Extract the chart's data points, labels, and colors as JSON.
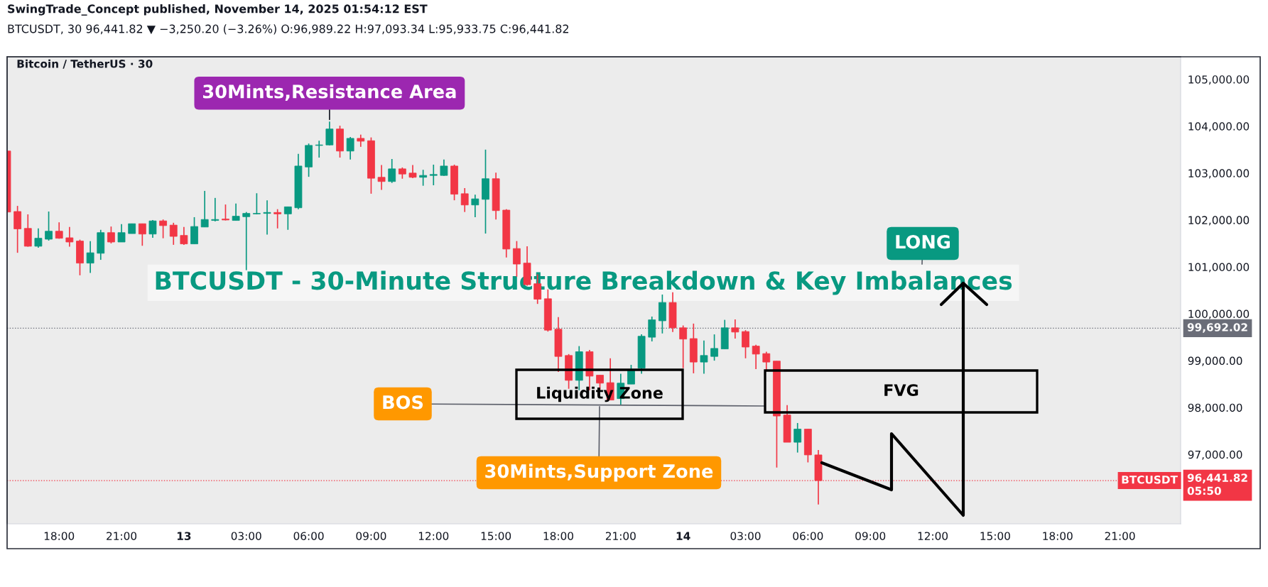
{
  "chart_data": {
    "type": "candlestick",
    "title": "BTCUSDT - 30-Minute Structure Breakdown & Key Imbalances",
    "subtitle": "Bitcoin / TetherUS · 30",
    "annotations": [
      "SwingTrade_Concept published, November 14, 2025 01:54:12 EST",
      "BTCUSDT, 30 96,441.82 ▼ −3,250.20 (−3.26%) O:96,989.22 H:97,093.34 L:95,933.75 C:96,441.82",
      {
        "text": "30Mints,Resistance Area",
        "x": "2025-11-13T07:00",
        "y": 104100
      },
      "LONG",
      "BOS",
      "30Mints,Support Zone",
      "Liquidity Zone",
      "FVG"
    ],
    "x": [
      "2025-11-12T15:30",
      "2025-11-12T16:00",
      "2025-11-12T16:30",
      "2025-11-12T17:00",
      "2025-11-12T17:30",
      "2025-11-12T18:00",
      "2025-11-12T18:30",
      "2025-11-12T19:00",
      "2025-11-12T19:30",
      "2025-11-12T20:00",
      "2025-11-12T20:30",
      "2025-11-12T21:00",
      "2025-11-12T21:30",
      "2025-11-12T22:00",
      "2025-11-12T22:30",
      "2025-11-12T23:00",
      "2025-11-12T23:30",
      "2025-11-13T00:00",
      "2025-11-13T00:30",
      "2025-11-13T01:00",
      "2025-11-13T01:30",
      "2025-11-13T02:00",
      "2025-11-13T02:30",
      "2025-11-13T03:00",
      "2025-11-13T03:30",
      "2025-11-13T04:00",
      "2025-11-13T04:30",
      "2025-11-13T05:00",
      "2025-11-13T05:30",
      "2025-11-13T06:00",
      "2025-11-13T06:30",
      "2025-11-13T07:00",
      "2025-11-13T07:30",
      "2025-11-13T08:00",
      "2025-11-13T08:30",
      "2025-11-13T09:00",
      "2025-11-13T09:30",
      "2025-11-13T10:00",
      "2025-11-13T10:30",
      "2025-11-13T11:00",
      "2025-11-13T11:30",
      "2025-11-13T12:00",
      "2025-11-13T12:30",
      "2025-11-13T13:00",
      "2025-11-13T13:30",
      "2025-11-13T14:00",
      "2025-11-13T14:30",
      "2025-11-13T15:00",
      "2025-11-13T15:30",
      "2025-11-13T16:00",
      "2025-11-13T16:30",
      "2025-11-13T17:00",
      "2025-11-13T17:30",
      "2025-11-13T18:00",
      "2025-11-13T18:30",
      "2025-11-13T19:00",
      "2025-11-13T19:30",
      "2025-11-13T20:00",
      "2025-11-13T20:30",
      "2025-11-13T21:00",
      "2025-11-13T21:30",
      "2025-11-13T22:00",
      "2025-11-13T22:30",
      "2025-11-13T23:00",
      "2025-11-13T23:30",
      "2025-11-14T00:00",
      "2025-11-14T00:30",
      "2025-11-14T01:00",
      "2025-11-14T01:30",
      "2025-11-14T02:00",
      "2025-11-14T02:30",
      "2025-11-14T03:00",
      "2025-11-14T03:30",
      "2025-11-14T04:00",
      "2025-11-14T04:30",
      "2025-11-14T05:00",
      "2025-11-14T05:30",
      "2025-11-14T06:00",
      "2025-11-14T06:30"
    ],
    "ohlc": [
      [
        103470,
        103470,
        102170,
        102170
      ],
      [
        102180,
        102300,
        101300,
        101810
      ],
      [
        101820,
        102120,
        101430,
        101440
      ],
      [
        101440,
        101820,
        101410,
        101610
      ],
      [
        101590,
        102180,
        101560,
        101760
      ],
      [
        101760,
        101950,
        101600,
        101610
      ],
      [
        101620,
        101850,
        101430,
        101530
      ],
      [
        101550,
        101580,
        100820,
        101080
      ],
      [
        101080,
        101550,
        100870,
        101300
      ],
      [
        101290,
        101790,
        101150,
        101730
      ],
      [
        101730,
        101860,
        101500,
        101530
      ],
      [
        101530,
        101910,
        101530,
        101730
      ],
      [
        101710,
        101920,
        101710,
        101920
      ],
      [
        101920,
        101920,
        101450,
        101700
      ],
      [
        101700,
        102000,
        101620,
        101980
      ],
      [
        101980,
        102010,
        101610,
        101880
      ],
      [
        101890,
        101940,
        101470,
        101650
      ],
      [
        101670,
        101850,
        101470,
        101490
      ],
      [
        101490,
        102060,
        101490,
        101860
      ],
      [
        101850,
        102620,
        101850,
        102010
      ],
      [
        101990,
        102470,
        101970,
        102010
      ],
      [
        102020,
        102330,
        101990,
        102000
      ],
      [
        101990,
        102350,
        101990,
        102080
      ],
      [
        102070,
        102170,
        100930,
        102140
      ],
      [
        102130,
        102570,
        102120,
        102140
      ],
      [
        102140,
        102420,
        101690,
        102160
      ],
      [
        102160,
        102230,
        101820,
        102130
      ],
      [
        102130,
        102280,
        101790,
        102280
      ],
      [
        102260,
        103410,
        102230,
        103150
      ],
      [
        103130,
        103630,
        102920,
        103590
      ],
      [
        103590,
        103690,
        103330,
        103600
      ],
      [
        103600,
        104100,
        103590,
        103940
      ],
      [
        103940,
        104010,
        103330,
        103470
      ],
      [
        103470,
        103770,
        103290,
        103740
      ],
      [
        103740,
        103820,
        103560,
        103680
      ],
      [
        103690,
        103760,
        102560,
        102890
      ],
      [
        102910,
        103170,
        102640,
        102820
      ],
      [
        102820,
        103300,
        102790,
        103090
      ],
      [
        103090,
        103120,
        102880,
        102980
      ],
      [
        103000,
        103170,
        102890,
        102910
      ],
      [
        102910,
        103070,
        102730,
        102950
      ],
      [
        102950,
        103180,
        102740,
        102970
      ],
      [
        102950,
        103290,
        102940,
        103150
      ],
      [
        103150,
        103180,
        102420,
        102550
      ],
      [
        102560,
        102680,
        102170,
        102320
      ],
      [
        102320,
        102540,
        102060,
        102450
      ],
      [
        102440,
        103500,
        101710,
        102880
      ],
      [
        102880,
        103010,
        102010,
        102200
      ],
      [
        102210,
        102230,
        101200,
        101380
      ],
      [
        101390,
        101550,
        100790,
        101060
      ],
      [
        101080,
        101440,
        100600,
        100620
      ],
      [
        100640,
        100840,
        100210,
        100310
      ],
      [
        100320,
        100520,
        99620,
        99650
      ],
      [
        99670,
        99930,
        98760,
        99090
      ],
      [
        99110,
        99140,
        98400,
        98580
      ],
      [
        98580,
        99310,
        98370,
        99190
      ],
      [
        99190,
        99230,
        98370,
        98670
      ],
      [
        98690,
        98690,
        98380,
        98520
      ],
      [
        98530,
        99050,
        98160,
        98160
      ],
      [
        98190,
        98720,
        98050,
        98520
      ],
      [
        98500,
        98910,
        98500,
        98790
      ],
      [
        98840,
        99560,
        98720,
        99520
      ],
      [
        99500,
        99940,
        99410,
        99870
      ],
      [
        99850,
        100410,
        99580,
        100240
      ],
      [
        100240,
        100460,
        99610,
        99700
      ],
      [
        99700,
        99750,
        98840,
        99460
      ],
      [
        99470,
        99790,
        98730,
        98970
      ],
      [
        98970,
        99430,
        98720,
        99110
      ],
      [
        99090,
        99560,
        99000,
        99260
      ],
      [
        99250,
        99870,
        99250,
        99700
      ],
      [
        99700,
        99880,
        99470,
        99610
      ],
      [
        99620,
        99650,
        99050,
        99290
      ],
      [
        99310,
        99340,
        98820,
        99140
      ],
      [
        99150,
        99190,
        98790,
        98970
      ],
      [
        98990,
        98990,
        96720,
        97820
      ],
      [
        97840,
        98050,
        97260,
        97260
      ],
      [
        97260,
        97670,
        97040,
        97540
      ],
      [
        97540,
        97540,
        96830,
        96990
      ],
      [
        96989.22,
        97093.34,
        95933.75,
        96441.82
      ]
    ],
    "colors": [
      "#f23645",
      "#f23645",
      "#f23645",
      "#089981",
      "#089981",
      "#f23645",
      "#f23645",
      "#f23645",
      "#089981",
      "#089981",
      "#f23645",
      "#089981",
      "#089981",
      "#f23645",
      "#089981",
      "#f23645",
      "#f23645",
      "#f23645",
      "#089981",
      "#089981",
      "#089981",
      "#f23645",
      "#089981",
      "#089981",
      "#089981",
      "#089981",
      "#f23645",
      "#089981",
      "#089981",
      "#089981",
      "#089981",
      "#089981",
      "#f23645",
      "#089981",
      "#f23645",
      "#f23645",
      "#f23645",
      "#089981",
      "#f23645",
      "#f23645",
      "#089981",
      "#089981",
      "#089981",
      "#f23645",
      "#f23645",
      "#089981",
      "#089981",
      "#f23645",
      "#f23645",
      "#f23645",
      "#f23645",
      "#f23645",
      "#f23645",
      "#f23645",
      "#f23645",
      "#089981",
      "#f23645",
      "#f23645",
      "#f23645",
      "#089981",
      "#089981",
      "#089981",
      "#089981",
      "#089981",
      "#f23645",
      "#f23645",
      "#f23645",
      "#089981",
      "#089981",
      "#089981",
      "#f23645",
      "#f23645",
      "#f23645",
      "#f23645",
      "#f23645",
      "#f23645",
      "#089981",
      "#f23645",
      "#f23645"
    ],
    "xlim": [
      "2025-11-12T15:30",
      "2025-11-14T23:55"
    ],
    "xticks": [
      {
        "value": "2025-11-12T18:00",
        "label": "18:00"
      },
      {
        "value": "2025-11-12T21:00",
        "label": "21:00"
      },
      {
        "value": "2025-11-13T00:00",
        "label": "13"
      },
      {
        "value": "2025-11-13T03:00",
        "label": "03:00"
      },
      {
        "value": "2025-11-13T06:00",
        "label": "06:00"
      },
      {
        "value": "2025-11-13T09:00",
        "label": "09:00"
      },
      {
        "value": "2025-11-13T12:00",
        "label": "12:00"
      },
      {
        "value": "2025-11-13T15:00",
        "label": "15:00"
      },
      {
        "value": "2025-11-13T18:00",
        "label": "18:00"
      },
      {
        "value": "2025-11-13T21:00",
        "label": "21:00"
      },
      {
        "value": "2025-11-14T00:00",
        "label": "14"
      },
      {
        "value": "2025-11-14T03:00",
        "label": "03:00"
      },
      {
        "value": "2025-11-14T06:00",
        "label": "06:00"
      },
      {
        "value": "2025-11-14T09:00",
        "label": "09:00"
      },
      {
        "value": "2025-11-14T12:00",
        "label": "12:00"
      },
      {
        "value": "2025-11-14T15:00",
        "label": "15:00"
      },
      {
        "value": "2025-11-14T18:00",
        "label": "18:00"
      },
      {
        "value": "2025-11-14T21:00",
        "label": "21:00"
      }
    ],
    "ylim": [
      95520,
      105480
    ],
    "yticks": [
      {
        "value": 97000,
        "label": "97,000.00"
      },
      {
        "value": 98000,
        "label": "98,000.00"
      },
      {
        "value": 99000,
        "label": "99,000.00"
      },
      {
        "value": 100000,
        "label": "100,000.00"
      },
      {
        "value": 101000,
        "label": "101,000.00"
      },
      {
        "value": 102000,
        "label": "102,000.00"
      },
      {
        "value": 103000,
        "label": "103,000.00"
      },
      {
        "value": 104000,
        "label": "104,000.00"
      },
      {
        "value": 105000,
        "label": "105,000.00"
      }
    ],
    "ref_lines": [
      {
        "axis": "y",
        "value": 99692.02,
        "label": "99,692.02",
        "color": "#6a6d78",
        "line_style": "dotted"
      },
      {
        "axis": "y",
        "value": 96441.82,
        "label": "BTCUSDT\n96,441.82\n05:50",
        "color": "#f23645",
        "line_style": "dotted"
      }
    ]
  }
}
